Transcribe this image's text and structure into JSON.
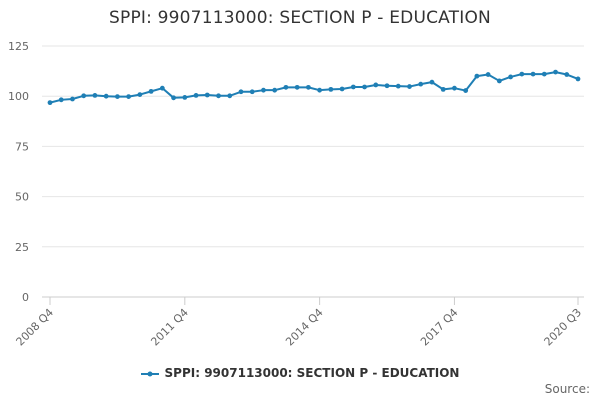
{
  "chart_data": {
    "type": "line",
    "title": "SPPI: 9907113000: SECTION P - EDUCATION",
    "xlabel": "",
    "ylabel": "",
    "ylim": [
      0,
      125
    ],
    "yticks": [
      0,
      25,
      50,
      75,
      100,
      125
    ],
    "grid": true,
    "legend_position": "bottom",
    "color": "#1f7fb5",
    "x_tick_labels": [
      "2008 Q4",
      "2011 Q4",
      "2014 Q4",
      "2017 Q4",
      "2020 Q3"
    ],
    "x": [
      "2008 Q4",
      "2009 Q1",
      "2009 Q2",
      "2009 Q3",
      "2009 Q4",
      "2010 Q1",
      "2010 Q2",
      "2010 Q3",
      "2010 Q4",
      "2011 Q1",
      "2011 Q2",
      "2011 Q3",
      "2011 Q4",
      "2012 Q1",
      "2012 Q2",
      "2012 Q3",
      "2012 Q4",
      "2013 Q1",
      "2013 Q2",
      "2013 Q3",
      "2013 Q4",
      "2014 Q1",
      "2014 Q2",
      "2014 Q3",
      "2014 Q4",
      "2015 Q1",
      "2015 Q2",
      "2015 Q3",
      "2015 Q4",
      "2016 Q1",
      "2016 Q2",
      "2016 Q3",
      "2016 Q4",
      "2017 Q1",
      "2017 Q2",
      "2017 Q3",
      "2017 Q4",
      "2018 Q1",
      "2018 Q2",
      "2018 Q3",
      "2018 Q4",
      "2019 Q1",
      "2019 Q2",
      "2019 Q3",
      "2019 Q4",
      "2020 Q1",
      "2020 Q2",
      "2020 Q3"
    ],
    "series": [
      {
        "name": "SPPI: 9907113000: SECTION P - EDUCATION",
        "values": [
          96.8,
          98.2,
          98.6,
          100.2,
          100.4,
          100.0,
          99.8,
          99.8,
          100.8,
          102.4,
          104.0,
          99.2,
          99.4,
          100.4,
          100.6,
          100.2,
          100.2,
          102.2,
          102.2,
          103.0,
          103.0,
          104.4,
          104.4,
          104.4,
          103.0,
          103.4,
          103.6,
          104.6,
          104.6,
          105.6,
          105.2,
          105.0,
          104.8,
          106.0,
          107.0,
          103.4,
          104.0,
          102.8,
          110.0,
          110.8,
          107.6,
          109.6,
          111.0,
          111.0,
          111.0,
          112.0,
          110.8,
          108.6
        ]
      }
    ]
  },
  "source_label": "Source:"
}
